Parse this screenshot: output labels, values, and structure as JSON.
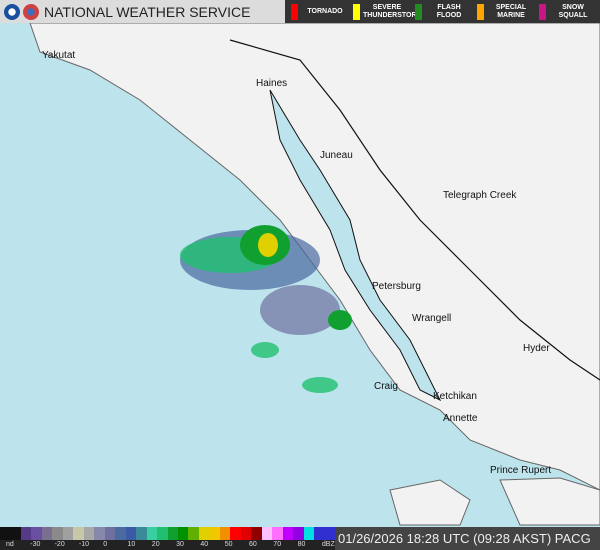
{
  "header": {
    "title": "NATIONAL WEATHER SERVICE",
    "warnings": [
      {
        "label": "TORNADO",
        "color": "#ff0000"
      },
      {
        "label": "SEVERE THUNDERSTORM",
        "color": "#ffff00"
      },
      {
        "label": "FLASH FLOOD",
        "color": "#228b22"
      },
      {
        "label": "SPECIAL MARINE",
        "color": "#ffa500"
      },
      {
        "label": "SNOW SQUALL",
        "color": "#c71585"
      }
    ]
  },
  "cities": [
    "Yakutat",
    "Haines",
    "Juneau",
    "Telegraph Creek",
    "Petersburg",
    "Wrangell",
    "Hyder",
    "Craig",
    "Ketchikan",
    "Annette",
    "Prince Rupert"
  ],
  "legend": {
    "ticks": [
      "nd",
      "-30",
      "-20",
      "-10",
      "0",
      "10",
      "20",
      "30",
      "40",
      "50",
      "60",
      "70",
      "80",
      "dBZ"
    ],
    "colors": [
      "#111",
      "#111",
      "#553a88",
      "#6a4fa0",
      "#7a6f90",
      "#8a8a8a",
      "#a0a0a0",
      "#c8c8a8",
      "#a8a8a8",
      "#8888aa",
      "#7070a0",
      "#4a6aa0",
      "#3a5aa8",
      "#3a8a9a",
      "#3acfa0",
      "#20c070",
      "#10a030",
      "#009000",
      "#60b000",
      "#e0d000",
      "#f0c800",
      "#f09000",
      "#ff0000",
      "#e00000",
      "#900000",
      "#ffc0ff",
      "#ff70ff",
      "#c000ff",
      "#9000e0",
      "#00e0e0",
      "#3030d0",
      "#3030d0"
    ]
  },
  "timestamp": "01/26/2026 18:28 UTC (09:28 AKST) PACG"
}
